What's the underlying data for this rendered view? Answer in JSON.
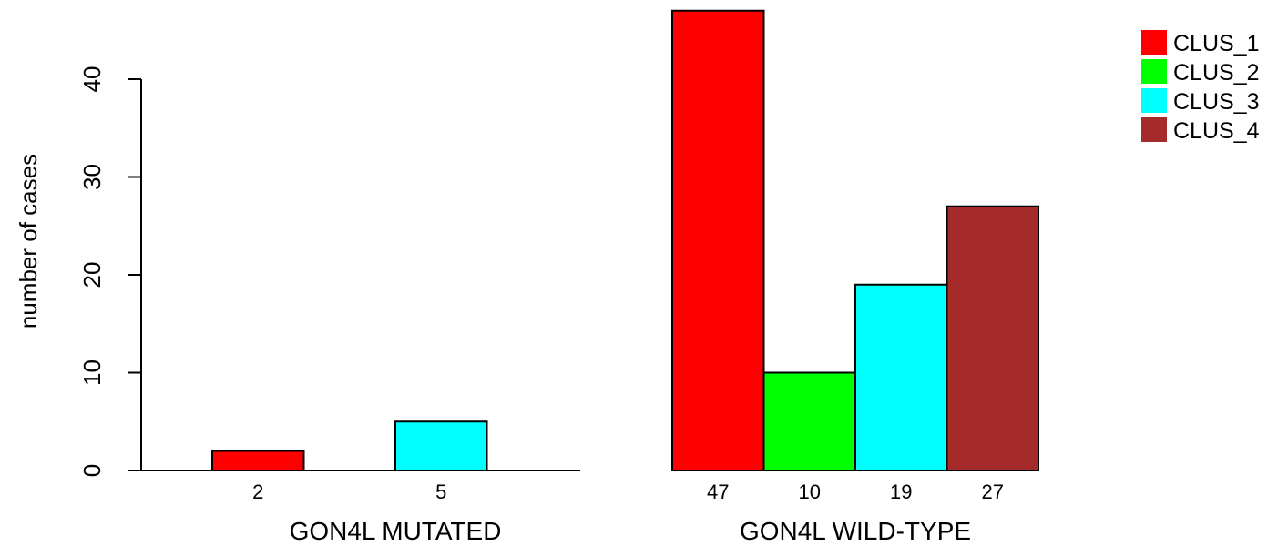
{
  "chart_data": {
    "type": "bar",
    "ylabel": "number of cases",
    "ylim": [
      0,
      47
    ],
    "yticks": [
      0,
      10,
      20,
      30,
      40
    ],
    "series_colors": [
      "#ff0000",
      "#00ff00",
      "#00ffff",
      "#a52a2a"
    ],
    "legend": {
      "placement": "top-right",
      "entries": [
        {
          "name": "CLUS_1",
          "color": "#ff0000"
        },
        {
          "name": "CLUS_2",
          "color": "#00ff00"
        },
        {
          "name": "CLUS_3",
          "color": "#00ffff"
        },
        {
          "name": "CLUS_4",
          "color": "#a52a2a"
        }
      ]
    },
    "groups": [
      {
        "name": "GON4L MUTATED",
        "values": [
          2,
          0,
          5,
          0
        ],
        "labels": [
          "2",
          "",
          "5",
          ""
        ]
      },
      {
        "name": "GON4L WILD-TYPE",
        "values": [
          47,
          10,
          19,
          27
        ],
        "labels": [
          "47",
          "10",
          "19",
          "27"
        ]
      }
    ]
  }
}
